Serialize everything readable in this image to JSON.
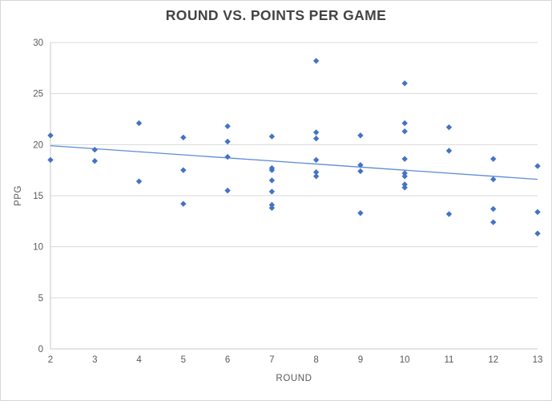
{
  "chart_data": {
    "type": "scatter",
    "title": "ROUND VS. POINTS PER GAME",
    "xlabel": "ROUND",
    "ylabel": "PPG",
    "xlim": [
      2,
      13
    ],
    "ylim": [
      0,
      30
    ],
    "x_ticks": [
      2,
      3,
      4,
      5,
      6,
      7,
      8,
      9,
      10,
      11,
      12,
      13
    ],
    "y_ticks": [
      0,
      5,
      10,
      15,
      20,
      25,
      30
    ],
    "grid": "horizontal-only",
    "legend": "none",
    "marker": "diamond",
    "colors": {
      "marker": "#4472C4",
      "trendline": "#5585d6",
      "gridline": "#d9d9d9",
      "axis_line": "#c9c9c9",
      "tick_label": "#595959",
      "title": "#434343"
    },
    "trendline": {
      "x1": 2,
      "y1": 19.9,
      "x2": 13,
      "y2": 16.6
    },
    "points": [
      [
        2,
        20.9
      ],
      [
        2,
        18.5
      ],
      [
        3,
        19.5
      ],
      [
        3,
        18.4
      ],
      [
        4,
        22.1
      ],
      [
        4,
        16.4
      ],
      [
        5,
        20.7
      ],
      [
        5,
        17.5
      ],
      [
        5,
        14.2
      ],
      [
        6,
        21.8
      ],
      [
        6,
        20.3
      ],
      [
        6,
        18.8
      ],
      [
        6,
        15.5
      ],
      [
        7,
        20.8
      ],
      [
        7,
        17.7
      ],
      [
        7,
        17.5
      ],
      [
        7,
        16.5
      ],
      [
        7,
        15.4
      ],
      [
        7,
        14.1
      ],
      [
        7,
        13.8
      ],
      [
        8,
        28.2
      ],
      [
        8,
        21.2
      ],
      [
        8,
        20.6
      ],
      [
        8,
        18.5
      ],
      [
        8,
        17.3
      ],
      [
        8,
        16.9
      ],
      [
        9,
        20.9
      ],
      [
        9,
        18.0
      ],
      [
        9,
        17.4
      ],
      [
        9,
        13.3
      ],
      [
        10,
        26.0
      ],
      [
        10,
        22.1
      ],
      [
        10,
        21.3
      ],
      [
        10,
        18.6
      ],
      [
        10,
        17.2
      ],
      [
        10,
        16.9
      ],
      [
        10,
        16.1
      ],
      [
        10,
        15.8
      ],
      [
        11,
        21.7
      ],
      [
        11,
        19.4
      ],
      [
        11,
        13.2
      ],
      [
        12,
        18.6
      ],
      [
        12,
        16.6
      ],
      [
        12,
        13.7
      ],
      [
        12,
        12.4
      ],
      [
        13,
        17.9
      ],
      [
        13,
        13.4
      ],
      [
        13,
        11.3
      ]
    ]
  }
}
